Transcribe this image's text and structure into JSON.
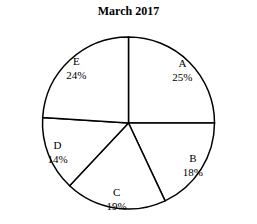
{
  "chart_data": {
    "type": "pie",
    "title": "March 2017",
    "categories": [
      "A",
      "B",
      "C",
      "D",
      "E"
    ],
    "values": [
      25,
      18,
      19,
      14,
      24
    ],
    "value_labels": [
      "25%",
      "18%",
      "19%",
      "14%",
      "24%"
    ],
    "data_labels": true,
    "color": "#ffffff"
  }
}
